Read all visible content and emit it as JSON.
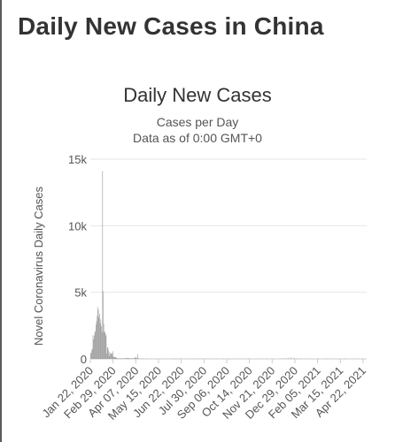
{
  "page": {
    "title": "Daily New Cases in China"
  },
  "chart_data": {
    "type": "bar",
    "title": "Daily New Cases",
    "subtitle_1": "Cases per Day",
    "subtitle_2": "Data as of 0:00 GMT+0",
    "xlabel": "",
    "ylabel": "Novel Coronavirus Daily Cases",
    "ylim": [
      0,
      15000
    ],
    "y_ticks": [
      {
        "value": 0,
        "label": "0"
      },
      {
        "value": 5000,
        "label": "5k"
      },
      {
        "value": 10000,
        "label": "10k"
      },
      {
        "value": 15000,
        "label": "15k"
      }
    ],
    "x_tick_labels": [
      "Jan 22, 2020",
      "Feb 29, 2020",
      "Apr 07, 2020",
      "May 15, 2020",
      "Jun 22, 2020",
      "Jul 30, 2020",
      "Sep 06, 2020",
      "Oct 14, 2020",
      "Nov 21, 2020",
      "Dec 29, 2020",
      "Feb 05, 2021",
      "Mar 15, 2021",
      "Apr 22, 2021"
    ],
    "x_start": "2020-01-22",
    "x_end": "2021-04-28",
    "grid": true,
    "bar_color": "#999999",
    "grid_color": "#e6e6e6",
    "series": [
      {
        "values": [
          [
            0,
            444
          ],
          [
            1,
            444
          ],
          [
            2,
            688
          ],
          [
            3,
            769
          ],
          [
            4,
            1771
          ],
          [
            5,
            1459
          ],
          [
            6,
            1737
          ],
          [
            7,
            1981
          ],
          [
            8,
            2099
          ],
          [
            9,
            2589
          ],
          [
            10,
            2825
          ],
          [
            11,
            3235
          ],
          [
            12,
            3884
          ],
          [
            13,
            3694
          ],
          [
            14,
            3143
          ],
          [
            15,
            3385
          ],
          [
            16,
            2652
          ],
          [
            17,
            2973
          ],
          [
            18,
            2467
          ],
          [
            19,
            2015
          ],
          [
            20,
            14108
          ],
          [
            21,
            5090
          ],
          [
            22,
            2641
          ],
          [
            23,
            2008
          ],
          [
            24,
            2048
          ],
          [
            25,
            1888
          ],
          [
            26,
            1749
          ],
          [
            27,
            391
          ],
          [
            28,
            889
          ],
          [
            29,
            823
          ],
          [
            30,
            648
          ],
          [
            31,
            214
          ],
          [
            32,
            508
          ],
          [
            33,
            406
          ],
          [
            34,
            433
          ],
          [
            35,
            327
          ],
          [
            36,
            427
          ],
          [
            37,
            573
          ],
          [
            38,
            202
          ],
          [
            39,
            125
          ],
          [
            40,
            119
          ],
          [
            41,
            139
          ],
          [
            42,
            143
          ],
          [
            43,
            99
          ],
          [
            44,
            44
          ],
          [
            45,
            40
          ],
          [
            46,
            19
          ],
          [
            47,
            24
          ],
          [
            48,
            15
          ],
          [
            49,
            20
          ],
          [
            50,
            11
          ],
          [
            51,
            20
          ],
          [
            52,
            16
          ],
          [
            53,
            21
          ],
          [
            54,
            13
          ],
          [
            55,
            34
          ],
          [
            56,
            39
          ],
          [
            57,
            41
          ],
          [
            58,
            46
          ],
          [
            59,
            39
          ],
          [
            60,
            78
          ],
          [
            61,
            47
          ],
          [
            62,
            67
          ],
          [
            63,
            55
          ],
          [
            64,
            54
          ],
          [
            65,
            45
          ],
          [
            66,
            31
          ],
          [
            67,
            35
          ],
          [
            68,
            31
          ],
          [
            69,
            30
          ],
          [
            70,
            39
          ],
          [
            71,
            32
          ],
          [
            72,
            62
          ],
          [
            73,
            46
          ],
          [
            74,
            99
          ],
          [
            75,
            108
          ],
          [
            76,
            97
          ],
          [
            77,
            46
          ],
          [
            78,
            89
          ],
          [
            79,
            352
          ],
          [
            80,
            12
          ],
          [
            81,
            11
          ],
          [
            84,
            30
          ],
          [
            88,
            20
          ],
          [
            95,
            15
          ],
          [
            102,
            10
          ],
          [
            110,
            8
          ],
          [
            120,
            15
          ],
          [
            135,
            22
          ],
          [
            140,
            60
          ],
          [
            145,
            25
          ],
          [
            150,
            18
          ],
          [
            165,
            30
          ],
          [
            172,
            40
          ],
          [
            178,
            20
          ],
          [
            186,
            15
          ],
          [
            195,
            10
          ],
          [
            210,
            12
          ],
          [
            221,
            30
          ],
          [
            233,
            15
          ],
          [
            250,
            12
          ],
          [
            265,
            10
          ],
          [
            280,
            12
          ],
          [
            295,
            20
          ],
          [
            318,
            40
          ],
          [
            325,
            60
          ],
          [
            330,
            80
          ],
          [
            335,
            120
          ],
          [
            340,
            100
          ],
          [
            345,
            50
          ],
          [
            352,
            30
          ],
          [
            365,
            20
          ],
          [
            380,
            15
          ],
          [
            395,
            20
          ],
          [
            410,
            18
          ],
          [
            425,
            15
          ],
          [
            440,
            12
          ],
          [
            455,
            20
          ]
        ]
      }
    ]
  }
}
